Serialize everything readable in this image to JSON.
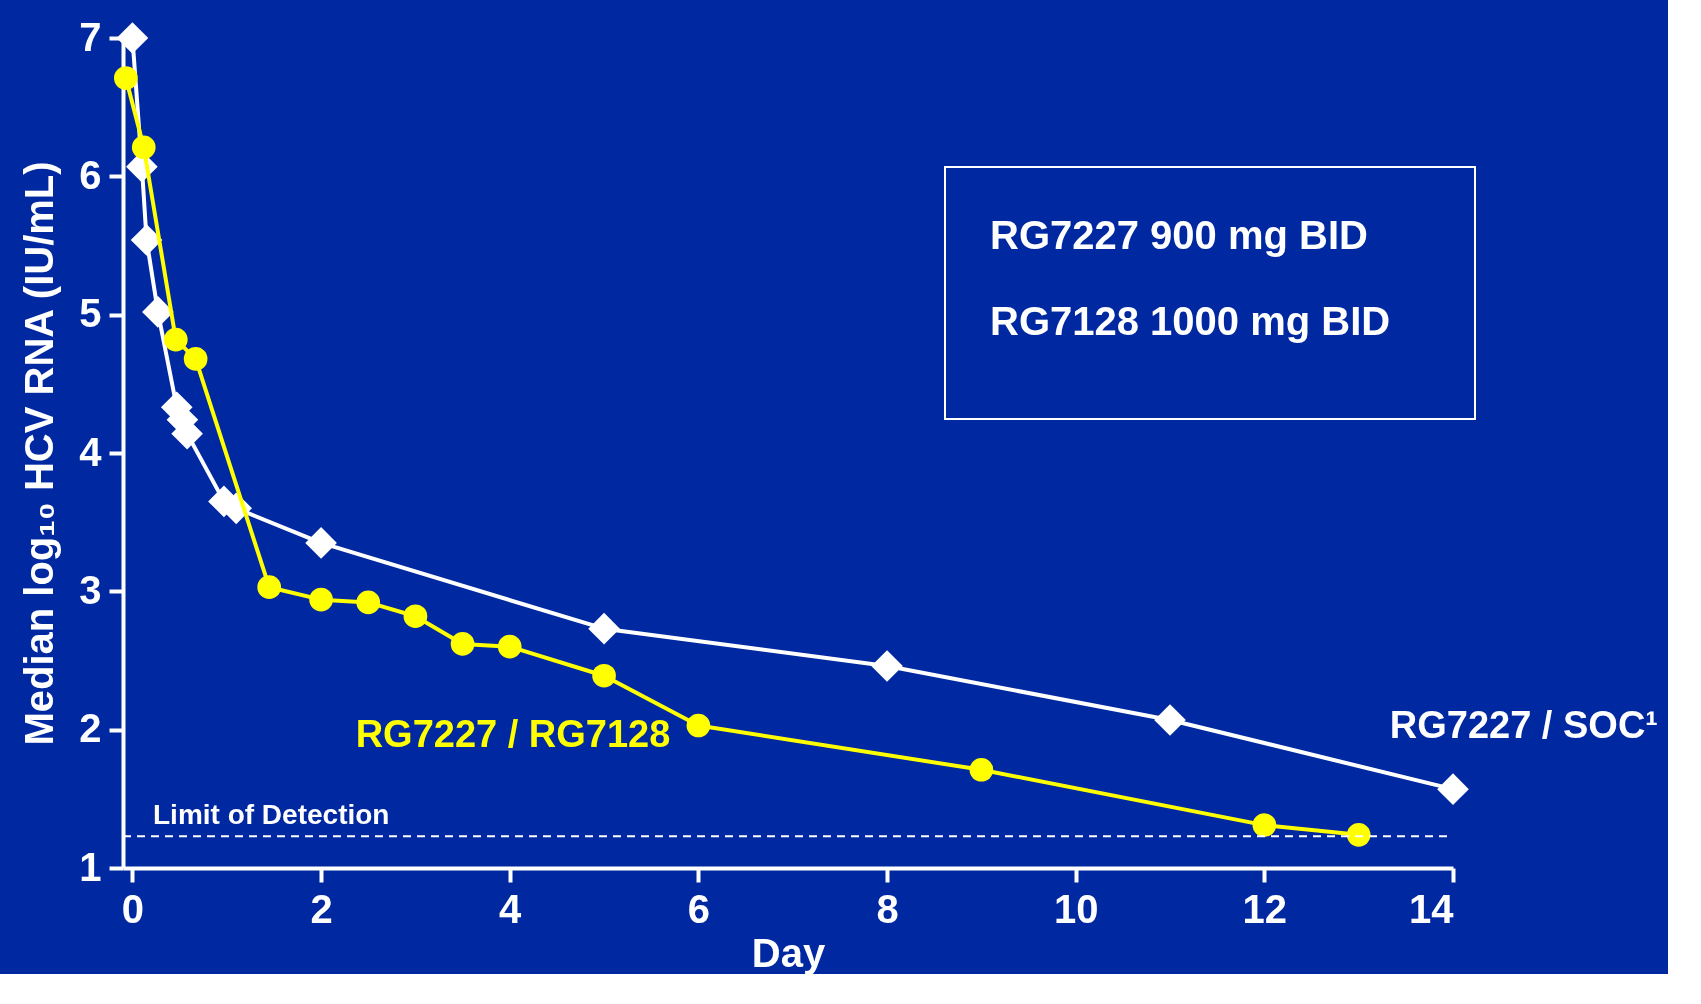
{
  "chart_data": {
    "type": "line",
    "xlabel": "Day",
    "ylabel": "Median log₁₀ HCV RNA (IU/mL)",
    "xlim": [
      -0.1,
      14
    ],
    "xticks": [
      0,
      2,
      4,
      6,
      8,
      10,
      12,
      14
    ],
    "ylim": [
      1,
      7
    ],
    "yticks": [
      1,
      2,
      3,
      4,
      5,
      6,
      7
    ],
    "line_style": "solid",
    "series": [
      {
        "name": "RG7227 / SOC¹",
        "color": "#ffffff",
        "marker": "diamond",
        "x": [
          0,
          0.1,
          0.15,
          0.27,
          0.47,
          0.53,
          0.58,
          0.97,
          1.1,
          2,
          5,
          8,
          11,
          14
        ],
        "values": [
          7.0,
          6.07,
          5.54,
          5.02,
          4.33,
          4.24,
          4.14,
          3.65,
          3.6,
          3.35,
          2.73,
          2.46,
          2.07,
          1.57
        ]
      },
      {
        "name": "RG7227 / RG7128",
        "color": "#ffff00",
        "marker": "circle",
        "x": [
          -0.07,
          0.12,
          0.46,
          0.67,
          1.45,
          2,
          2.5,
          3,
          3.5,
          4,
          5,
          6,
          9,
          12,
          13
        ],
        "values": [
          6.71,
          6.21,
          4.82,
          4.68,
          3.03,
          2.94,
          2.92,
          2.82,
          2.62,
          2.6,
          2.39,
          2.03,
          1.71,
          1.31,
          1.24
        ]
      }
    ],
    "ref_lines": [
      {
        "axis": "y",
        "value": 1.23,
        "label": "Limit of Detection",
        "color": "#ffffff",
        "line_style": "dashed"
      }
    ],
    "annotations": [
      "RG7227 900 mg BID",
      "RG7128 1000 mg BID"
    ]
  }
}
